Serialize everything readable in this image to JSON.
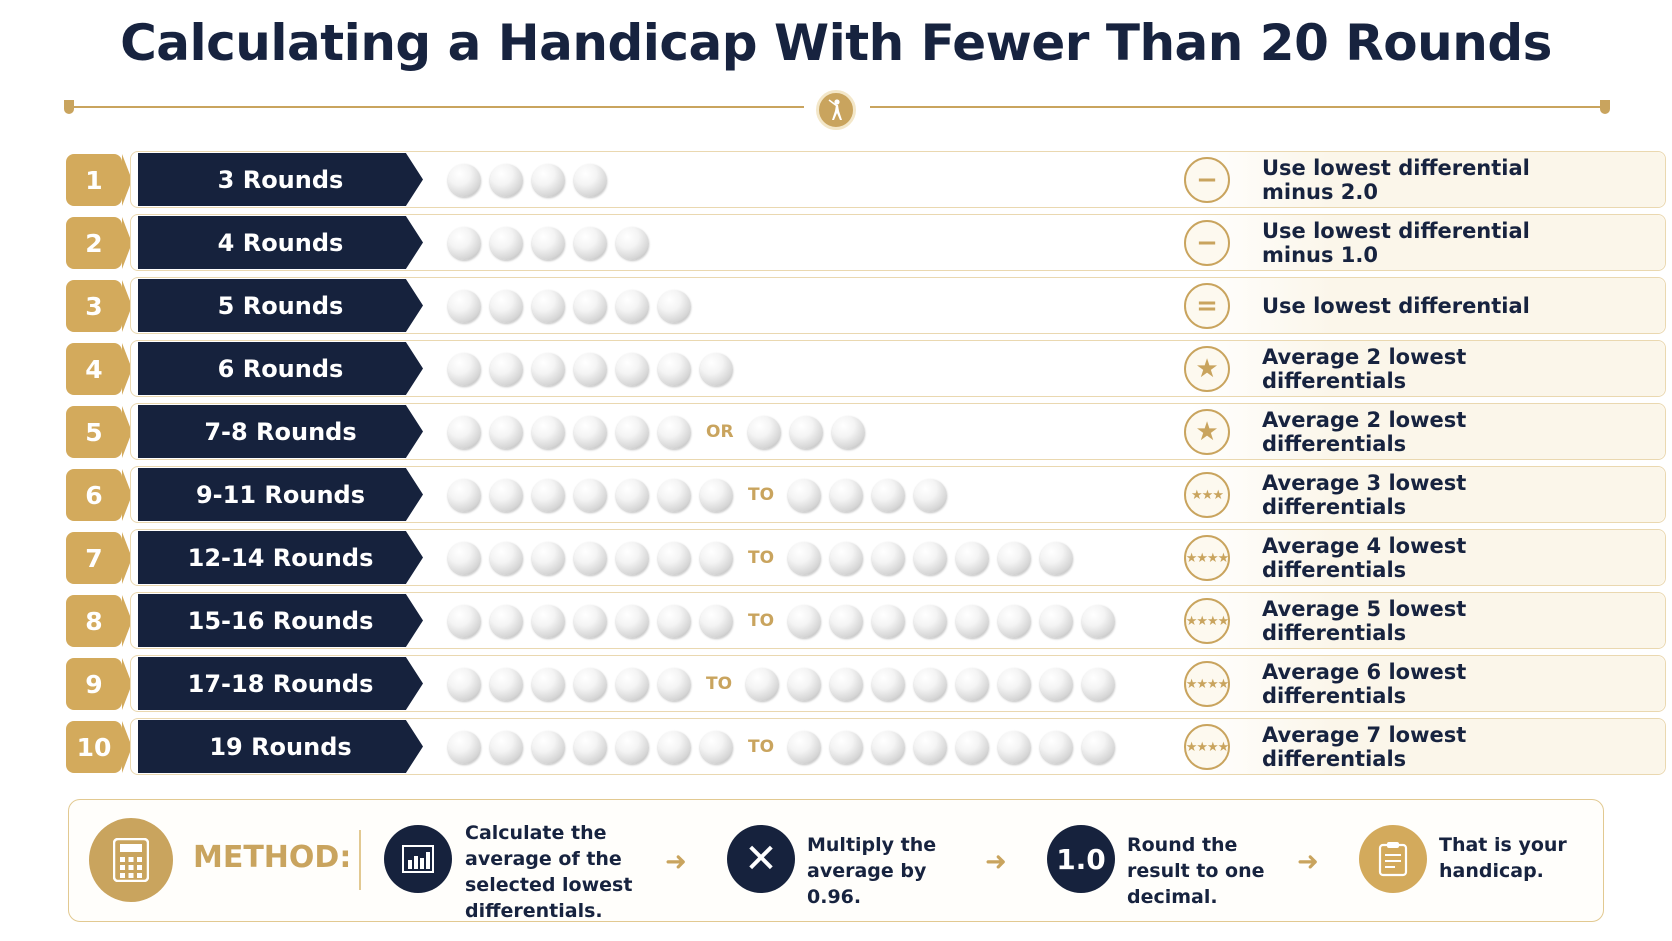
{
  "title": "Calculating a Handicap With Fewer Than 20 Rounds",
  "rows": [
    {
      "num": "1",
      "label": "3 Rounds",
      "balls_a": 4,
      "sep": "",
      "balls_b": 0,
      "icon": "minus-icon",
      "desc": "Use lowest differential minus 2.0"
    },
    {
      "num": "2",
      "label": "4 Rounds",
      "balls_a": 5,
      "sep": "",
      "balls_b": 0,
      "icon": "minus-icon",
      "desc": "Use lowest differential minus 1.0"
    },
    {
      "num": "3",
      "label": "5 Rounds",
      "balls_a": 6,
      "sep": "",
      "balls_b": 0,
      "icon": "equals-icon",
      "desc": "Use lowest differential"
    },
    {
      "num": "4",
      "label": "6 Rounds",
      "balls_a": 7,
      "sep": "",
      "balls_b": 0,
      "icon": "star-icon",
      "desc": "Average 2 lowest differentials"
    },
    {
      "num": "5",
      "label": "7-8 Rounds",
      "balls_a": 6,
      "sep": "OR",
      "balls_b": 3,
      "icon": "star-icon",
      "desc": "Average 2 lowest differentials"
    },
    {
      "num": "6",
      "label": "9-11 Rounds",
      "balls_a": 7,
      "sep": "TO",
      "balls_b": 4,
      "icon": "three-stars-icon",
      "desc": "Average 3 lowest differentials"
    },
    {
      "num": "7",
      "label": "12-14 Rounds",
      "balls_a": 7,
      "sep": "TO",
      "balls_b": 7,
      "icon": "four-stars-icon",
      "desc": "Average 4 lowest differentials"
    },
    {
      "num": "8",
      "label": "15-16 Rounds",
      "balls_a": 7,
      "sep": "TO",
      "balls_b": 8,
      "icon": "four-stars-icon",
      "desc": "Average 5 lowest differentials"
    },
    {
      "num": "9",
      "label": "17-18 Rounds",
      "balls_a": 6,
      "sep": "TO",
      "balls_b": 9,
      "icon": "four-stars-icon",
      "desc": "Average 6 lowest differentials"
    },
    {
      "num": "10",
      "label": "19 Rounds",
      "balls_a": 7,
      "sep": "TO",
      "balls_b": 8,
      "icon": "four-stars-icon",
      "desc": "Average 7 lowest differentials"
    }
  ],
  "method": {
    "label": "METHOD:",
    "step1": "Calculate the average of the selected lowest differentials.",
    "step2": "Multiply the average by 0.96.",
    "step3_icon": "1.0",
    "step3": "Round the result to one decimal.",
    "step4": "That is your handicap."
  },
  "colors": {
    "gold": "#c9a45e",
    "navy": "#16223d",
    "ball": "#e6e6e6"
  }
}
